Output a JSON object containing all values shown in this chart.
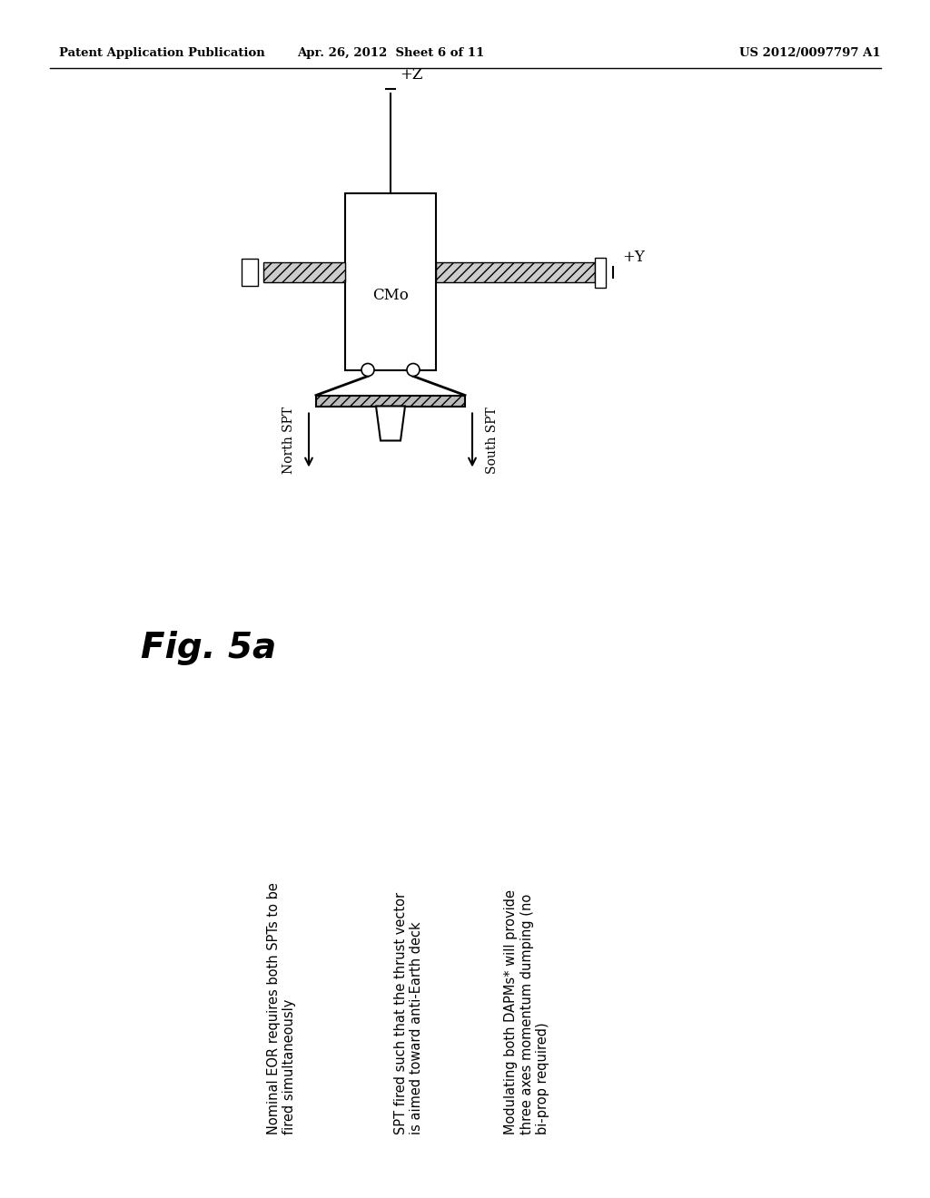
{
  "header_left": "Patent Application Publication",
  "header_center": "Apr. 26, 2012  Sheet 6 of 11",
  "header_right": "US 2012/0097797 A1",
  "fig_label": "Fig. 5a",
  "cmo_label": "CMo",
  "plus_z_label": "+Z",
  "plus_y_label": "+Y",
  "north_spt_label": "North SPT",
  "south_spt_label": "South SPT",
  "bullet1": "Nominal EOR requires both SPTs to be\nfired simultaneously",
  "bullet2": "SPT fired such that the thrust vector\nis aimed toward anti-Earth deck",
  "bullet3": "Modulating both DAPMs* will provide\nthree axes momentum dumping (no\nbi-prop required)",
  "bg_color": "#ffffff",
  "line_color": "#000000",
  "text_color": "#000000"
}
